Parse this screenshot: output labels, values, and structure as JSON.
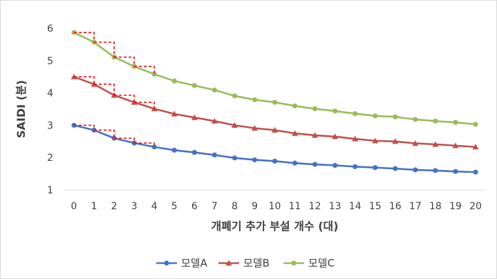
{
  "chart_data": {
    "type": "line",
    "xlabel": "개폐기 추가 부설 개수 (대)",
    "ylabel": "SAIDI (분)",
    "x": [
      0,
      1,
      2,
      3,
      4,
      5,
      6,
      7,
      8,
      9,
      10,
      11,
      12,
      13,
      14,
      15,
      16,
      17,
      18,
      19,
      20
    ],
    "xlim": [
      0,
      20
    ],
    "ylim": [
      1,
      6
    ],
    "yticks": [
      1,
      2,
      3,
      4,
      5,
      6
    ],
    "grid": false,
    "legend_position": "bottom",
    "series": [
      {
        "name": "모델A",
        "color": "#4472c4",
        "marker": "circle",
        "values": [
          3.0,
          2.85,
          2.6,
          2.45,
          2.33,
          2.23,
          2.16,
          2.08,
          1.99,
          1.93,
          1.89,
          1.83,
          1.79,
          1.76,
          1.72,
          1.69,
          1.66,
          1.62,
          1.6,
          1.57,
          1.55
        ]
      },
      {
        "name": "모델B",
        "color": "#c0504d",
        "marker": "triangle",
        "values": [
          4.5,
          4.27,
          3.93,
          3.71,
          3.51,
          3.35,
          3.24,
          3.13,
          3.0,
          2.91,
          2.85,
          2.75,
          2.69,
          2.65,
          2.58,
          2.52,
          2.5,
          2.44,
          2.41,
          2.37,
          2.33
        ]
      },
      {
        "name": "모델C",
        "color": "#9bbb59",
        "marker": "circle",
        "values": [
          5.87,
          5.57,
          5.11,
          4.82,
          4.58,
          4.37,
          4.23,
          4.09,
          3.91,
          3.79,
          3.71,
          3.6,
          3.51,
          3.44,
          3.36,
          3.29,
          3.26,
          3.18,
          3.13,
          3.09,
          3.03
        ]
      }
    ],
    "annotations": {
      "style": "dashed step lines",
      "color": "#ff0000",
      "x_range": [
        0,
        4
      ],
      "applies_to": [
        "모델A",
        "모델B",
        "모델C"
      ]
    }
  }
}
